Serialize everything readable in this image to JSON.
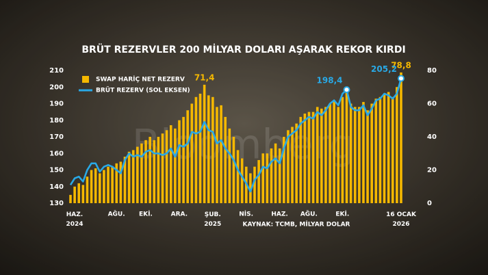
{
  "chart_data": {
    "type": "combo",
    "title": "BRÜT REZERVLER 200 MİLYAR DOLARI AŞARAK REKOR KIRDI",
    "source": "KAYNAK: TCMB, MİLYAR DOLAR",
    "watermark": "Bloomberg",
    "categories": [
      "HAZ. 2024",
      null,
      null,
      null,
      null,
      null,
      null,
      null,
      null,
      null,
      "AĞU.",
      null,
      null,
      null,
      null,
      null,
      null,
      "EKİ.",
      null,
      null,
      null,
      null,
      null,
      null,
      null,
      "ARA.",
      null,
      null,
      null,
      null,
      null,
      null,
      null,
      "ŞUB. 2025",
      null,
      null,
      null,
      null,
      null,
      null,
      null,
      "NİS.",
      null,
      null,
      null,
      null,
      null,
      null,
      null,
      "HAZ.",
      null,
      null,
      null,
      null,
      null,
      null,
      "AĞU.",
      null,
      null,
      null,
      null,
      null,
      null,
      null,
      "EKİ.",
      null,
      null,
      null,
      null,
      null,
      null,
      null,
      null,
      null,
      null,
      null,
      null,
      null,
      null,
      "16 OCAK 2026"
    ],
    "series": [
      {
        "name": "SWAP HARİÇ NET REZERV",
        "type": "bar",
        "axis": "y2",
        "color": "#f5b800",
        "values": [
          5,
          10,
          12,
          11,
          16,
          20,
          21,
          18,
          20,
          22,
          22,
          24,
          25,
          28,
          31,
          32,
          34,
          36,
          38,
          40,
          38,
          40,
          42,
          44,
          47,
          45,
          50,
          52,
          56,
          60,
          64,
          66,
          71.4,
          65,
          64,
          58,
          59,
          52,
          45,
          40,
          32,
          27,
          22,
          18,
          22,
          26,
          30,
          30,
          33,
          36,
          33,
          40,
          44,
          46,
          48,
          52,
          54,
          55,
          55,
          58,
          57,
          58,
          60,
          62,
          58,
          64,
          67,
          60,
          58,
          58,
          61,
          56,
          60,
          63,
          64,
          66,
          67,
          64,
          70,
          78.8
        ],
        "value_labels": [
          null,
          null,
          null,
          null,
          null,
          null,
          null,
          null,
          null,
          null,
          null,
          null,
          null,
          null,
          null,
          null,
          null,
          null,
          null,
          null,
          null,
          null,
          null,
          null,
          null,
          null,
          null,
          null,
          null,
          null,
          null,
          null,
          "71,4",
          null,
          null,
          null,
          null,
          null,
          null,
          null,
          null,
          null,
          null,
          null,
          null,
          null,
          null,
          null,
          null,
          null,
          null,
          null,
          null,
          null,
          null,
          null,
          null,
          null,
          null,
          null,
          null,
          null,
          null,
          null,
          null,
          null,
          null,
          null,
          null,
          null,
          null,
          null,
          null,
          null,
          null,
          null,
          null,
          null,
          null,
          "78,8"
        ]
      },
      {
        "name": "BRÜT REZERV (SOL EKSEN)",
        "type": "line",
        "color": "#29a9e6",
        "values": [
          141,
          145,
          146,
          143,
          150,
          154,
          154,
          149,
          152,
          153,
          152,
          150,
          148,
          156,
          160,
          158,
          159,
          158,
          161,
          162,
          160,
          160,
          159,
          160,
          163,
          158,
          165,
          164,
          166,
          173,
          172,
          173,
          179,
          174,
          173,
          166,
          168,
          163,
          160,
          156,
          150,
          146,
          142,
          137,
          144,
          147,
          152,
          151,
          155,
          157,
          154,
          163,
          170,
          172,
          174,
          178,
          180,
          182,
          181,
          185,
          183,
          186,
          190,
          192,
          189,
          196,
          198.4,
          188,
          186,
          186,
          189,
          183,
          187,
          192,
          193,
          196,
          195,
          193,
          196,
          205.2
        ],
        "value_labels": [
          null,
          null,
          null,
          null,
          null,
          null,
          null,
          null,
          null,
          null,
          null,
          null,
          null,
          null,
          null,
          null,
          null,
          null,
          null,
          null,
          null,
          null,
          null,
          null,
          null,
          null,
          null,
          null,
          null,
          null,
          null,
          null,
          null,
          null,
          null,
          null,
          null,
          null,
          null,
          null,
          null,
          null,
          null,
          null,
          null,
          null,
          null,
          null,
          null,
          null,
          null,
          null,
          null,
          null,
          null,
          null,
          null,
          null,
          null,
          null,
          null,
          null,
          null,
          null,
          null,
          null,
          "198,4",
          null,
          null,
          null,
          null,
          null,
          null,
          null,
          null,
          null,
          null,
          null,
          null,
          "205,2"
        ]
      }
    ],
    "ylim": [
      130,
      210
    ],
    "yticks": [
      130,
      140,
      150,
      160,
      170,
      180,
      190,
      200,
      210
    ],
    "y2lim": [
      0,
      80
    ],
    "y2ticks": [
      0,
      20,
      40,
      60,
      80
    ],
    "grid": false
  }
}
